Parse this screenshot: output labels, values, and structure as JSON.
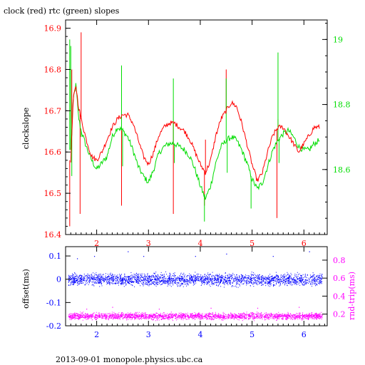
{
  "title": "clock (red) rtc (green) slopes",
  "footer": "2013-09-01 monopole.physics.ubc.ca",
  "colors": {
    "clock": "#ff0000",
    "rtc": "#00dd00",
    "offset": "#0000ff",
    "rndtrip": "#ff00ff",
    "axis": "#000000"
  },
  "chart_data": [
    {
      "type": "line",
      "title": "clock (red) rtc (green) slopes",
      "ylabel": "clockslope",
      "xlim": [
        1.4,
        6.45
      ],
      "ylim": [
        16.4,
        16.92
      ],
      "y2lim": [
        18.4,
        19.06
      ],
      "x_ticks": [
        2,
        3,
        4,
        5,
        6
      ],
      "y_ticks": [
        16.4,
        16.5,
        16.6,
        16.7,
        16.8,
        16.9
      ],
      "y_tick_labels": [
        "16.4",
        "16.5",
        "16.6",
        "16.7",
        "16.8",
        "16.9"
      ],
      "y2_ticks": [
        18.6,
        18.8,
        19.0
      ],
      "y2_tick_labels": [
        "18.6",
        "18.8",
        "19"
      ],
      "series": [
        {
          "name": "clock",
          "axis": "left",
          "x": [
            1.5,
            1.55,
            1.6,
            1.65,
            1.7,
            1.8,
            1.9,
            2.0,
            2.1,
            2.2,
            2.3,
            2.4,
            2.5,
            2.6,
            2.7,
            2.8,
            2.9,
            3.0,
            3.1,
            3.2,
            3.3,
            3.4,
            3.5,
            3.6,
            3.7,
            3.8,
            3.9,
            4.0,
            4.1,
            4.2,
            4.3,
            4.4,
            4.5,
            4.6,
            4.7,
            4.8,
            4.9,
            5.0,
            5.1,
            5.2,
            5.3,
            5.4,
            5.5,
            5.6,
            5.7,
            5.8,
            5.9,
            6.0,
            6.1,
            6.2,
            6.3
          ],
          "y": [
            16.58,
            16.73,
            16.76,
            16.71,
            16.68,
            16.63,
            16.59,
            16.58,
            16.6,
            16.63,
            16.66,
            16.68,
            16.69,
            16.69,
            16.67,
            16.63,
            16.59,
            16.57,
            16.6,
            16.64,
            16.66,
            16.67,
            16.67,
            16.66,
            16.65,
            16.63,
            16.6,
            16.57,
            16.55,
            16.58,
            16.64,
            16.68,
            16.7,
            16.72,
            16.71,
            16.67,
            16.62,
            16.57,
            16.53,
            16.55,
            16.6,
            16.64,
            16.66,
            16.66,
            16.64,
            16.62,
            16.6,
            16.62,
            16.64,
            16.66,
            16.66
          ],
          "spikes": [
            [
              1.48,
              16.42
            ],
            [
              1.52,
              16.8
            ],
            [
              1.68,
              16.45
            ],
            [
              1.7,
              16.89
            ],
            [
              2.48,
              16.47
            ],
            [
              3.48,
              16.45
            ],
            [
              4.08,
              16.47
            ],
            [
              4.1,
              16.63
            ],
            [
              4.5,
              16.8
            ],
            [
              5.48,
              16.44
            ],
            [
              5.5,
              16.68
            ]
          ]
        },
        {
          "name": "rtc",
          "axis": "right",
          "x": [
            1.5,
            1.55,
            1.6,
            1.65,
            1.7,
            1.8,
            1.9,
            2.0,
            2.1,
            2.2,
            2.3,
            2.4,
            2.5,
            2.6,
            2.7,
            2.8,
            2.9,
            3.0,
            3.1,
            3.2,
            3.3,
            3.4,
            3.5,
            3.6,
            3.7,
            3.8,
            3.9,
            4.0,
            4.1,
            4.2,
            4.3,
            4.4,
            4.5,
            4.6,
            4.7,
            4.8,
            4.9,
            5.0,
            5.1,
            5.2,
            5.3,
            5.4,
            5.5,
            5.6,
            5.7,
            5.8,
            5.9,
            6.0,
            6.1,
            6.2,
            6.3
          ],
          "y": [
            18.66,
            18.82,
            18.86,
            18.76,
            18.72,
            18.67,
            18.63,
            18.6,
            18.62,
            18.64,
            18.7,
            18.73,
            18.72,
            18.7,
            18.66,
            18.61,
            18.58,
            18.56,
            18.6,
            18.65,
            18.67,
            18.68,
            18.68,
            18.67,
            18.66,
            18.64,
            18.6,
            18.55,
            18.51,
            18.55,
            18.62,
            18.67,
            18.69,
            18.7,
            18.69,
            18.66,
            18.62,
            18.57,
            18.54,
            18.56,
            18.61,
            18.66,
            18.69,
            18.71,
            18.72,
            18.7,
            18.67,
            18.66,
            18.66,
            18.68,
            18.69
          ],
          "spikes": [
            [
              1.48,
              19.0
            ],
            [
              1.5,
              18.98
            ],
            [
              1.52,
              18.58
            ],
            [
              1.7,
              18.7
            ],
            [
              2.48,
              18.92
            ],
            [
              2.5,
              18.61
            ],
            [
              3.48,
              18.88
            ],
            [
              3.5,
              18.62
            ],
            [
              4.08,
              18.44
            ],
            [
              4.5,
              18.88
            ],
            [
              4.52,
              18.59
            ],
            [
              4.98,
              18.48
            ],
            [
              5.5,
              18.96
            ],
            [
              5.52,
              18.62
            ]
          ]
        }
      ]
    },
    {
      "type": "scatter",
      "ylabel": "offset(ms)",
      "y2label": "rnd-trip(ms)",
      "xlim": [
        1.4,
        6.45
      ],
      "ylim": [
        -0.2,
        0.14
      ],
      "y2lim": [
        0.07,
        0.95
      ],
      "x_ticks": [
        2,
        3,
        4,
        5,
        6
      ],
      "y_ticks": [
        -0.2,
        -0.1,
        0,
        0.1
      ],
      "y_tick_labels": [
        "-0.2",
        "-0.1",
        "0",
        "0.1"
      ],
      "y2_ticks": [
        0.2,
        0.4,
        0.6,
        0.8
      ],
      "y2_tick_labels": [
        "0.2",
        "0.4",
        "0.6",
        "0.8"
      ],
      "series": [
        {
          "name": "offset",
          "axis": "left",
          "x_range": [
            1.45,
            6.35
          ],
          "center": 0.0,
          "spread": 0.025,
          "outliers": [
            [
              1.62,
              0.09
            ],
            [
              1.95,
              0.1
            ],
            [
              2.6,
              0.12
            ],
            [
              2.9,
              0.1
            ],
            [
              3.9,
              0.1
            ],
            [
              4.5,
              0.11
            ],
            [
              5.4,
              0.1
            ],
            [
              6.1,
              0.12
            ]
          ]
        },
        {
          "name": "rnd-trip",
          "axis": "right",
          "x_range": [
            1.45,
            6.35
          ],
          "center": 0.18,
          "spread": 0.035,
          "outliers": [
            [
              1.8,
              0.26
            ],
            [
              2.3,
              0.28
            ],
            [
              3.2,
              0.26
            ],
            [
              4.2,
              0.27
            ],
            [
              5.1,
              0.27
            ],
            [
              5.9,
              0.28
            ]
          ]
        }
      ]
    }
  ]
}
